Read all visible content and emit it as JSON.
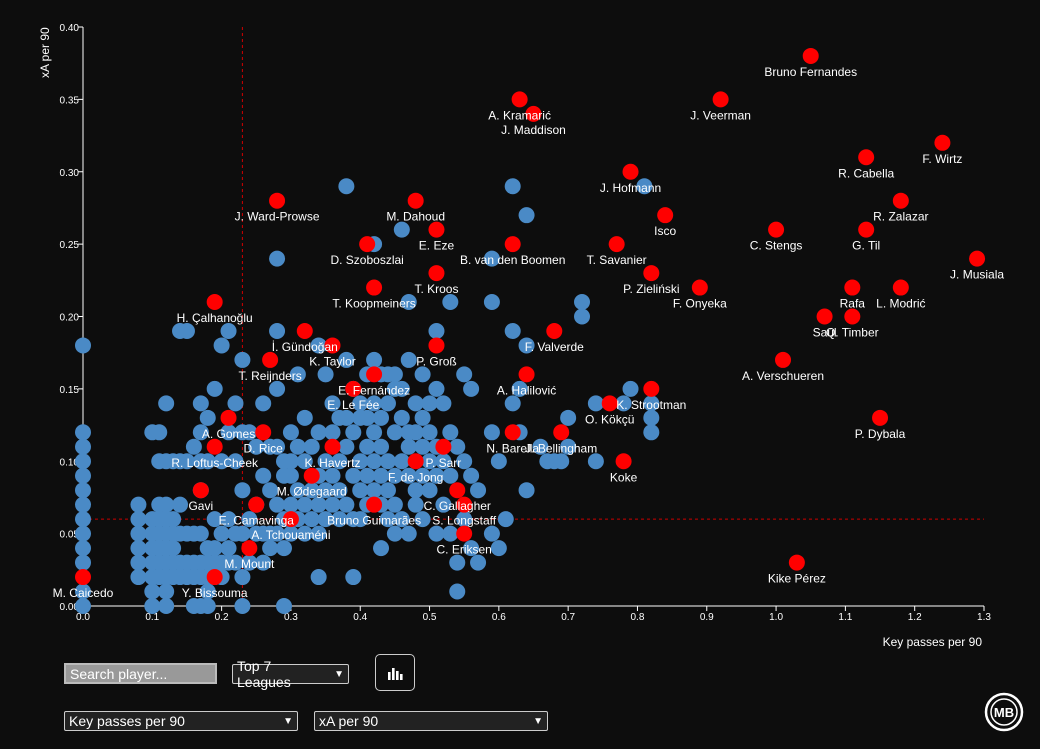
{
  "chart_data": {
    "type": "scatter",
    "xlabel": "Key passes per 90",
    "ylabel": "xA per 90",
    "xlim": [
      0.0,
      1.3
    ],
    "ylim": [
      0.0,
      0.4
    ],
    "x_ticks": [
      "0.0",
      "0.1",
      "0.2",
      "0.3",
      "0.4",
      "0.5",
      "0.6",
      "0.7",
      "0.8",
      "0.9",
      "1.0",
      "1.1",
      "1.2",
      "1.3"
    ],
    "y_ticks": [
      "0.00",
      "0.05",
      "0.10",
      "0.15",
      "0.20",
      "0.25",
      "0.30",
      "0.35",
      "0.40"
    ],
    "x_ref": 0.23,
    "y_ref": 0.06,
    "colors": {
      "highlight": "#ff0000",
      "other": "#4a8ac6",
      "ref_line": "#cc0000"
    },
    "highlighted": [
      {
        "name": "Bruno Fernandes",
        "x": 1.05,
        "y": 0.38
      },
      {
        "name": "A. Kramarić",
        "x": 0.63,
        "y": 0.35
      },
      {
        "name": "J. Maddison",
        "x": 0.65,
        "y": 0.34
      },
      {
        "name": "J. Veerman",
        "x": 0.92,
        "y": 0.35
      },
      {
        "name": "F. Wirtz",
        "x": 1.24,
        "y": 0.32
      },
      {
        "name": "R. Cabella",
        "x": 1.13,
        "y": 0.31
      },
      {
        "name": "J. Hofmann",
        "x": 0.79,
        "y": 0.3
      },
      {
        "name": "J. Ward-Prowse",
        "x": 0.28,
        "y": 0.28
      },
      {
        "name": "M. Dahoud",
        "x": 0.48,
        "y": 0.28
      },
      {
        "name": "R. Zalazar",
        "x": 1.18,
        "y": 0.28
      },
      {
        "name": "Isco",
        "x": 0.84,
        "y": 0.27
      },
      {
        "name": "C. Stengs",
        "x": 1.0,
        "y": 0.26
      },
      {
        "name": "G. Til",
        "x": 1.13,
        "y": 0.26
      },
      {
        "name": "E. Eze",
        "x": 0.51,
        "y": 0.26
      },
      {
        "name": "D. Szoboszlai",
        "x": 0.41,
        "y": 0.25
      },
      {
        "name": "B. van den Boomen",
        "x": 0.62,
        "y": 0.25
      },
      {
        "name": "T. Savanier",
        "x": 0.77,
        "y": 0.25
      },
      {
        "name": "J. Musiala",
        "x": 1.29,
        "y": 0.24
      },
      {
        "name": "T. Kroos",
        "x": 0.51,
        "y": 0.23
      },
      {
        "name": "P. Zieliński",
        "x": 0.82,
        "y": 0.23
      },
      {
        "name": "F. Onyeka",
        "x": 0.89,
        "y": 0.22
      },
      {
        "name": "T. Koopmeiners",
        "x": 0.42,
        "y": 0.22
      },
      {
        "name": "Rafa",
        "x": 1.11,
        "y": 0.22
      },
      {
        "name": "L. Modrić",
        "x": 1.18,
        "y": 0.22
      },
      {
        "name": "Saúl",
        "x": 1.07,
        "y": 0.2
      },
      {
        "name": "Q. Timber",
        "x": 1.11,
        "y": 0.2
      },
      {
        "name": "H. Çalhanoğlu",
        "x": 0.19,
        "y": 0.21
      },
      {
        "name": "F. Valverde",
        "x": 0.68,
        "y": 0.19
      },
      {
        "name": "İ. Gündoğan",
        "x": 0.32,
        "y": 0.19
      },
      {
        "name": "K. Taylor",
        "x": 0.36,
        "y": 0.18
      },
      {
        "name": "P. Groß",
        "x": 0.51,
        "y": 0.18
      },
      {
        "name": "T. Reijnders",
        "x": 0.27,
        "y": 0.17
      },
      {
        "name": "A. Verschueren",
        "x": 1.01,
        "y": 0.17
      },
      {
        "name": "E. Fernández",
        "x": 0.42,
        "y": 0.16
      },
      {
        "name": "A. Halilović",
        "x": 0.64,
        "y": 0.16
      },
      {
        "name": "E. Le Fée",
        "x": 0.39,
        "y": 0.15
      },
      {
        "name": "K. Strootman",
        "x": 0.82,
        "y": 0.15
      },
      {
        "name": "O. Kökçü",
        "x": 0.76,
        "y": 0.14
      },
      {
        "name": "P. Dybala",
        "x": 1.15,
        "y": 0.13
      },
      {
        "name": "A. Gomes",
        "x": 0.21,
        "y": 0.13
      },
      {
        "name": "D. Rice",
        "x": 0.26,
        "y": 0.12
      },
      {
        "name": "N. Barella",
        "x": 0.62,
        "y": 0.12
      },
      {
        "name": "J. Bellingham",
        "x": 0.69,
        "y": 0.12
      },
      {
        "name": "R. Loftus-Cheek",
        "x": 0.19,
        "y": 0.11
      },
      {
        "name": "K. Havertz",
        "x": 0.36,
        "y": 0.11
      },
      {
        "name": "P. Sarr",
        "x": 0.52,
        "y": 0.11
      },
      {
        "name": "Koke",
        "x": 0.78,
        "y": 0.1
      },
      {
        "name": "M. Ødegaard",
        "x": 0.33,
        "y": 0.09
      },
      {
        "name": "F. de Jong",
        "x": 0.48,
        "y": 0.1
      },
      {
        "name": "C. Gallagher",
        "x": 0.54,
        "y": 0.08
      },
      {
        "name": "Gavi",
        "x": 0.17,
        "y": 0.08
      },
      {
        "name": "S. Longstaff",
        "x": 0.55,
        "y": 0.07
      },
      {
        "name": "E. Camavinga",
        "x": 0.25,
        "y": 0.07
      },
      {
        "name": "Bruno Guimarães",
        "x": 0.42,
        "y": 0.07
      },
      {
        "name": "A. Tchouaméni",
        "x": 0.3,
        "y": 0.06
      },
      {
        "name": "C. Eriksen",
        "x": 0.55,
        "y": 0.05
      },
      {
        "name": "M. Mount",
        "x": 0.24,
        "y": 0.04
      },
      {
        "name": "Kike Pérez",
        "x": 1.03,
        "y": 0.03
      },
      {
        "name": "Y. Bissouma",
        "x": 0.19,
        "y": 0.02
      },
      {
        "name": "M. Caicedo",
        "x": 0.0,
        "y": 0.02
      }
    ],
    "others": [
      [
        0.0,
        0.18
      ],
      [
        0.0,
        0.12
      ],
      [
        0.0,
        0.11
      ],
      [
        0.0,
        0.1
      ],
      [
        0.0,
        0.09
      ],
      [
        0.0,
        0.08
      ],
      [
        0.0,
        0.07
      ],
      [
        0.0,
        0.06
      ],
      [
        0.0,
        0.05
      ],
      [
        0.0,
        0.04
      ],
      [
        0.0,
        0.03
      ],
      [
        0.0,
        0.01
      ],
      [
        0.0,
        0.0
      ],
      [
        0.08,
        0.07
      ],
      [
        0.08,
        0.06
      ],
      [
        0.08,
        0.05
      ],
      [
        0.08,
        0.04
      ],
      [
        0.08,
        0.03
      ],
      [
        0.08,
        0.02
      ],
      [
        0.1,
        0.12
      ],
      [
        0.1,
        0.06
      ],
      [
        0.1,
        0.05
      ],
      [
        0.1,
        0.04
      ],
      [
        0.1,
        0.03
      ],
      [
        0.1,
        0.02
      ],
      [
        0.1,
        0.01
      ],
      [
        0.1,
        0.0
      ],
      [
        0.11,
        0.12
      ],
      [
        0.11,
        0.1
      ],
      [
        0.11,
        0.07
      ],
      [
        0.11,
        0.06
      ],
      [
        0.11,
        0.05
      ],
      [
        0.11,
        0.04
      ],
      [
        0.11,
        0.03
      ],
      [
        0.11,
        0.02
      ],
      [
        0.12,
        0.14
      ],
      [
        0.12,
        0.1
      ],
      [
        0.12,
        0.07
      ],
      [
        0.12,
        0.06
      ],
      [
        0.12,
        0.05
      ],
      [
        0.12,
        0.04
      ],
      [
        0.12,
        0.03
      ],
      [
        0.12,
        0.02
      ],
      [
        0.12,
        0.01
      ],
      [
        0.12,
        0.0
      ],
      [
        0.13,
        0.1
      ],
      [
        0.13,
        0.06
      ],
      [
        0.13,
        0.05
      ],
      [
        0.13,
        0.04
      ],
      [
        0.13,
        0.03
      ],
      [
        0.13,
        0.02
      ],
      [
        0.14,
        0.1
      ],
      [
        0.14,
        0.07
      ],
      [
        0.14,
        0.05
      ],
      [
        0.14,
        0.03
      ],
      [
        0.14,
        0.02
      ],
      [
        0.14,
        0.19
      ],
      [
        0.15,
        0.19
      ],
      [
        0.15,
        0.1
      ],
      [
        0.15,
        0.05
      ],
      [
        0.15,
        0.03
      ],
      [
        0.15,
        0.02
      ],
      [
        0.16,
        0.11
      ],
      [
        0.16,
        0.05
      ],
      [
        0.16,
        0.03
      ],
      [
        0.16,
        0.02
      ],
      [
        0.16,
        0.0
      ],
      [
        0.17,
        0.14
      ],
      [
        0.17,
        0.12
      ],
      [
        0.17,
        0.1
      ],
      [
        0.17,
        0.08
      ],
      [
        0.17,
        0.05
      ],
      [
        0.17,
        0.03
      ],
      [
        0.17,
        0.02
      ],
      [
        0.17,
        0.0
      ],
      [
        0.18,
        0.13
      ],
      [
        0.18,
        0.1
      ],
      [
        0.18,
        0.04
      ],
      [
        0.18,
        0.03
      ],
      [
        0.18,
        0.02
      ],
      [
        0.18,
        0.01
      ],
      [
        0.18,
        0.0
      ],
      [
        0.19,
        0.15
      ],
      [
        0.19,
        0.06
      ],
      [
        0.19,
        0.04
      ],
      [
        0.19,
        0.03
      ],
      [
        0.19,
        0.02
      ],
      [
        0.2,
        0.18
      ],
      [
        0.2,
        0.1
      ],
      [
        0.2,
        0.05
      ],
      [
        0.2,
        0.03
      ],
      [
        0.2,
        0.02
      ],
      [
        0.21,
        0.19
      ],
      [
        0.21,
        0.12
      ],
      [
        0.21,
        0.06
      ],
      [
        0.21,
        0.04
      ],
      [
        0.21,
        0.03
      ],
      [
        0.22,
        0.1
      ],
      [
        0.22,
        0.14
      ],
      [
        0.22,
        0.05
      ],
      [
        0.22,
        0.03
      ],
      [
        0.23,
        0.17
      ],
      [
        0.23,
        0.12
      ],
      [
        0.23,
        0.08
      ],
      [
        0.23,
        0.05
      ],
      [
        0.23,
        0.02
      ],
      [
        0.23,
        0.0
      ],
      [
        0.24,
        0.12
      ],
      [
        0.24,
        0.06
      ],
      [
        0.24,
        0.03
      ],
      [
        0.25,
        0.11
      ],
      [
        0.25,
        0.07
      ],
      [
        0.25,
        0.05
      ],
      [
        0.26,
        0.14
      ],
      [
        0.26,
        0.09
      ],
      [
        0.26,
        0.05
      ],
      [
        0.26,
        0.03
      ],
      [
        0.27,
        0.11
      ],
      [
        0.27,
        0.08
      ],
      [
        0.27,
        0.05
      ],
      [
        0.27,
        0.04
      ],
      [
        0.28,
        0.24
      ],
      [
        0.28,
        0.19
      ],
      [
        0.28,
        0.15
      ],
      [
        0.28,
        0.11
      ],
      [
        0.28,
        0.07
      ],
      [
        0.28,
        0.05
      ],
      [
        0.29,
        0.1
      ],
      [
        0.29,
        0.09
      ],
      [
        0.29,
        0.06
      ],
      [
        0.29,
        0.04
      ],
      [
        0.29,
        0.0
      ],
      [
        0.3,
        0.12
      ],
      [
        0.3,
        0.1
      ],
      [
        0.3,
        0.09
      ],
      [
        0.3,
        0.07
      ],
      [
        0.3,
        0.05
      ],
      [
        0.31,
        0.16
      ],
      [
        0.31,
        0.11
      ],
      [
        0.31,
        0.08
      ],
      [
        0.31,
        0.06
      ],
      [
        0.32,
        0.13
      ],
      [
        0.32,
        0.1
      ],
      [
        0.32,
        0.07
      ],
      [
        0.32,
        0.05
      ],
      [
        0.33,
        0.11
      ],
      [
        0.33,
        0.08
      ],
      [
        0.33,
        0.06
      ],
      [
        0.34,
        0.18
      ],
      [
        0.34,
        0.12
      ],
      [
        0.34,
        0.09
      ],
      [
        0.34,
        0.07
      ],
      [
        0.34,
        0.05
      ],
      [
        0.34,
        0.02
      ],
      [
        0.35,
        0.16
      ],
      [
        0.35,
        0.1
      ],
      [
        0.35,
        0.08
      ],
      [
        0.35,
        0.06
      ],
      [
        0.36,
        0.14
      ],
      [
        0.36,
        0.12
      ],
      [
        0.36,
        0.09
      ],
      [
        0.36,
        0.07
      ],
      [
        0.37,
        0.13
      ],
      [
        0.37,
        0.1
      ],
      [
        0.37,
        0.08
      ],
      [
        0.37,
        0.06
      ],
      [
        0.38,
        0.29
      ],
      [
        0.38,
        0.17
      ],
      [
        0.38,
        0.13
      ],
      [
        0.38,
        0.11
      ],
      [
        0.38,
        0.07
      ],
      [
        0.39,
        0.15
      ],
      [
        0.39,
        0.12
      ],
      [
        0.39,
        0.09
      ],
      [
        0.39,
        0.06
      ],
      [
        0.39,
        0.02
      ],
      [
        0.4,
        0.14
      ],
      [
        0.4,
        0.13
      ],
      [
        0.4,
        0.1
      ],
      [
        0.4,
        0.08
      ],
      [
        0.4,
        0.06
      ],
      [
        0.41,
        0.16
      ],
      [
        0.41,
        0.13
      ],
      [
        0.41,
        0.11
      ],
      [
        0.41,
        0.09
      ],
      [
        0.41,
        0.07
      ],
      [
        0.42,
        0.25
      ],
      [
        0.42,
        0.17
      ],
      [
        0.42,
        0.14
      ],
      [
        0.42,
        0.12
      ],
      [
        0.42,
        0.1
      ],
      [
        0.42,
        0.08
      ],
      [
        0.43,
        0.16
      ],
      [
        0.43,
        0.13
      ],
      [
        0.43,
        0.11
      ],
      [
        0.43,
        0.09
      ],
      [
        0.43,
        0.07
      ],
      [
        0.43,
        0.04
      ],
      [
        0.44,
        0.16
      ],
      [
        0.44,
        0.14
      ],
      [
        0.44,
        0.1
      ],
      [
        0.44,
        0.08
      ],
      [
        0.44,
        0.06
      ],
      [
        0.45,
        0.16
      ],
      [
        0.45,
        0.15
      ],
      [
        0.45,
        0.12
      ],
      [
        0.45,
        0.09
      ],
      [
        0.45,
        0.07
      ],
      [
        0.45,
        0.05
      ],
      [
        0.46,
        0.26
      ],
      [
        0.46,
        0.15
      ],
      [
        0.46,
        0.13
      ],
      [
        0.46,
        0.1
      ],
      [
        0.46,
        0.06
      ],
      [
        0.47,
        0.21
      ],
      [
        0.47,
        0.17
      ],
      [
        0.47,
        0.12
      ],
      [
        0.47,
        0.11
      ],
      [
        0.47,
        0.09
      ],
      [
        0.47,
        0.05
      ],
      [
        0.48,
        0.14
      ],
      [
        0.48,
        0.12
      ],
      [
        0.48,
        0.08
      ],
      [
        0.48,
        0.07
      ],
      [
        0.49,
        0.16
      ],
      [
        0.49,
        0.13
      ],
      [
        0.49,
        0.11
      ],
      [
        0.49,
        0.09
      ],
      [
        0.49,
        0.06
      ],
      [
        0.5,
        0.14
      ],
      [
        0.5,
        0.12
      ],
      [
        0.5,
        0.1
      ],
      [
        0.5,
        0.08
      ],
      [
        0.51,
        0.19
      ],
      [
        0.51,
        0.15
      ],
      [
        0.51,
        0.11
      ],
      [
        0.51,
        0.09
      ],
      [
        0.51,
        0.05
      ],
      [
        0.52,
        0.14
      ],
      [
        0.52,
        0.1
      ],
      [
        0.52,
        0.07
      ],
      [
        0.53,
        0.21
      ],
      [
        0.53,
        0.12
      ],
      [
        0.53,
        0.09
      ],
      [
        0.53,
        0.05
      ],
      [
        0.54,
        0.11
      ],
      [
        0.54,
        0.03
      ],
      [
        0.54,
        0.01
      ],
      [
        0.55,
        0.16
      ],
      [
        0.55,
        0.1
      ],
      [
        0.55,
        0.06
      ],
      [
        0.56,
        0.15
      ],
      [
        0.56,
        0.09
      ],
      [
        0.56,
        0.04
      ],
      [
        0.57,
        0.08
      ],
      [
        0.57,
        0.03
      ],
      [
        0.59,
        0.24
      ],
      [
        0.59,
        0.21
      ],
      [
        0.59,
        0.12
      ],
      [
        0.59,
        0.05
      ],
      [
        0.6,
        0.1
      ],
      [
        0.6,
        0.04
      ],
      [
        0.61,
        0.06
      ],
      [
        0.62,
        0.29
      ],
      [
        0.62,
        0.19
      ],
      [
        0.62,
        0.14
      ],
      [
        0.63,
        0.15
      ],
      [
        0.63,
        0.12
      ],
      [
        0.64,
        0.27
      ],
      [
        0.64,
        0.18
      ],
      [
        0.64,
        0.08
      ],
      [
        0.66,
        0.11
      ],
      [
        0.67,
        0.1
      ],
      [
        0.68,
        0.1
      ],
      [
        0.69,
        0.1
      ],
      [
        0.7,
        0.11
      ],
      [
        0.7,
        0.13
      ],
      [
        0.72,
        0.21
      ],
      [
        0.72,
        0.2
      ],
      [
        0.74,
        0.14
      ],
      [
        0.74,
        0.1
      ],
      [
        0.78,
        0.14
      ],
      [
        0.79,
        0.15
      ],
      [
        0.81,
        0.29
      ],
      [
        0.82,
        0.14
      ],
      [
        0.82,
        0.13
      ],
      [
        0.82,
        0.12
      ]
    ]
  },
  "controls": {
    "search_placeholder": "Search player...",
    "league": "Top 7 Leagues",
    "x_metric": "Key passes per 90",
    "y_metric": "xA per 90"
  },
  "icons": {
    "chart_button": "bar-chart-icon",
    "logo": "mb-logo-icon"
  },
  "logo_text": "MB"
}
